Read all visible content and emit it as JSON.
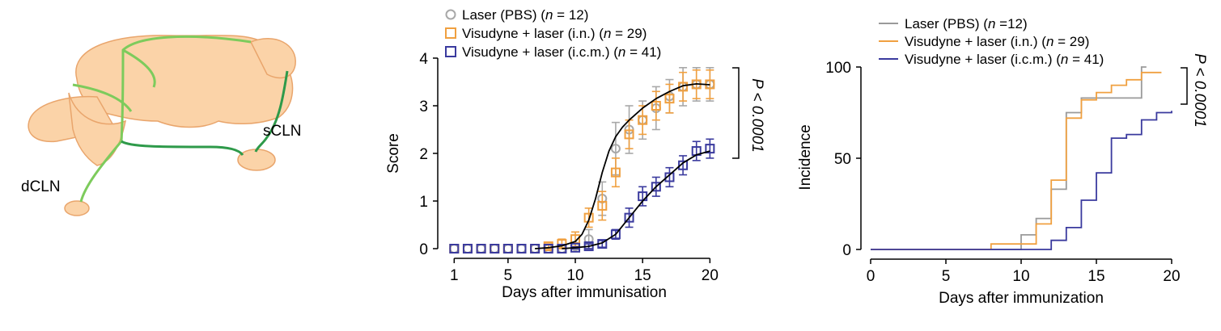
{
  "panel_a": {
    "labels": {
      "dcln": "dCLN",
      "scln": "sCLN"
    },
    "colors": {
      "brain_fill": "#fbd3a8",
      "brain_stroke": "#e9a56c",
      "vessel_light": "#7dcb5c",
      "vessel_dark": "#2e9a4a"
    }
  },
  "chart_data": [
    {
      "type": "line",
      "xlabel": "Days after immunisation",
      "ylabel": "Score",
      "xlim": [
        0.5,
        20.7
      ],
      "ylim": [
        0,
        4
      ],
      "xticks": [
        1,
        5,
        10,
        15,
        20
      ],
      "yticks": [
        0,
        1,
        2,
        3,
        4
      ],
      "legend_position": "top",
      "significance": "P < 0.0001",
      "series": [
        {
          "name": "Laser (PBS)",
          "n_label": "n",
          "n_text": " = 12",
          "close": ")",
          "color": "#a8a8a8",
          "marker": "circle",
          "x": [
            1,
            2,
            3,
            4,
            5,
            6,
            7,
            8,
            9,
            10,
            11,
            12,
            13,
            14,
            15,
            16,
            17,
            18,
            19,
            20
          ],
          "y": [
            0,
            0,
            0,
            0,
            0,
            0,
            0,
            0,
            0,
            0.05,
            0.2,
            1.05,
            2.1,
            2.5,
            2.7,
            2.95,
            3.2,
            3.4,
            3.45,
            3.45
          ],
          "err": [
            0,
            0,
            0,
            0,
            0,
            0,
            0,
            0,
            0,
            0.05,
            0.2,
            0.35,
            0.55,
            0.5,
            0.4,
            0.45,
            0.35,
            0.4,
            0.35,
            0.35
          ]
        },
        {
          "name": "Visudyne + laser (i.n.)",
          "n_label": "n",
          "n_text": " = 29",
          "close": ")",
          "color": "#f0a040",
          "marker": "square",
          "x": [
            1,
            2,
            3,
            4,
            5,
            6,
            7,
            8,
            9,
            10,
            11,
            12,
            13,
            14,
            15,
            16,
            17,
            18,
            19,
            20
          ],
          "y": [
            0,
            0,
            0,
            0,
            0,
            0,
            0,
            0.05,
            0.1,
            0.2,
            0.65,
            0.9,
            1.6,
            2.4,
            2.7,
            3.0,
            3.15,
            3.4,
            3.45,
            3.45
          ],
          "err": [
            0,
            0,
            0,
            0,
            0,
            0,
            0,
            0.05,
            0.1,
            0.15,
            0.2,
            0.3,
            0.3,
            0.3,
            0.3,
            0.3,
            0.3,
            0.3,
            0.3,
            0.3
          ]
        },
        {
          "name": "Visudyne + laser (i.c.m.)",
          "n_label": "n",
          "n_text": " = 41",
          "close": ")",
          "color": "#3a3a9e",
          "marker": "square",
          "x": [
            1,
            2,
            3,
            4,
            5,
            6,
            7,
            8,
            9,
            10,
            11,
            12,
            13,
            14,
            15,
            16,
            17,
            18,
            19,
            20
          ],
          "y": [
            0,
            0,
            0,
            0,
            0,
            0,
            0,
            0,
            0,
            0.02,
            0.05,
            0.1,
            0.3,
            0.65,
            1.1,
            1.3,
            1.5,
            1.75,
            2.05,
            2.1
          ],
          "err": [
            0,
            0,
            0,
            0,
            0,
            0,
            0,
            0,
            0,
            0.02,
            0.05,
            0.07,
            0.1,
            0.2,
            0.2,
            0.2,
            0.2,
            0.2,
            0.2,
            0.2
          ]
        }
      ],
      "fit_curves": [
        {
          "color": "#000000",
          "x": [
            7,
            8,
            9,
            10,
            10.5,
            11,
            11.5,
            12,
            12.5,
            13,
            13.5,
            14,
            15,
            16,
            17,
            18,
            19,
            20
          ],
          "y": [
            0,
            0.02,
            0.06,
            0.15,
            0.3,
            0.6,
            1.05,
            1.6,
            2.05,
            2.35,
            2.55,
            2.7,
            2.95,
            3.15,
            3.3,
            3.42,
            3.46,
            3.44
          ]
        },
        {
          "color": "#000000",
          "x": [
            9,
            10,
            11,
            12,
            13,
            14,
            15,
            16,
            17,
            18,
            19,
            20
          ],
          "y": [
            0,
            0.02,
            0.05,
            0.12,
            0.3,
            0.65,
            1.0,
            1.3,
            1.55,
            1.8,
            1.97,
            2.05
          ]
        }
      ]
    },
    {
      "type": "line",
      "xlabel": "Days after immunization",
      "ylabel": "Incidence",
      "xlim": [
        0,
        20
      ],
      "ylim": [
        0,
        100
      ],
      "xticks": [
        0,
        5,
        10,
        15,
        20
      ],
      "yticks": [
        0,
        50,
        100
      ],
      "legend_position": "top",
      "significance": "P < 0.0001",
      "series": [
        {
          "name": "Laser (PBS)",
          "n_label": "n",
          "n_text": " =12",
          "close": ")",
          "color": "#9a9a9a",
          "step": true,
          "x": [
            0,
            10,
            11,
            12,
            13,
            14,
            18,
            18
          ],
          "y": [
            0,
            8,
            17,
            33,
            75,
            83,
            83,
            100
          ]
        },
        {
          "name": "Visudyne + laser (i.n.)",
          "n_label": "n",
          "n_text": " = 29",
          "close": ")",
          "color": "#f0a040",
          "step": true,
          "x": [
            0,
            8,
            11,
            12,
            13,
            14,
            15,
            16,
            17,
            18,
            19
          ],
          "y": [
            0,
            3,
            14,
            38,
            72,
            82,
            86,
            90,
            93,
            97,
            97
          ]
        },
        {
          "name": "Visudyne + laser (i.c.m.)",
          "n_label": "n",
          "n_text": " = 41",
          "close": ")",
          "color": "#3a3a9e",
          "step": true,
          "x": [
            0,
            12,
            13,
            14,
            15,
            16,
            17,
            18,
            19,
            20
          ],
          "y": [
            0,
            5,
            12,
            27,
            42,
            61,
            63,
            71,
            75,
            76
          ]
        }
      ]
    }
  ]
}
